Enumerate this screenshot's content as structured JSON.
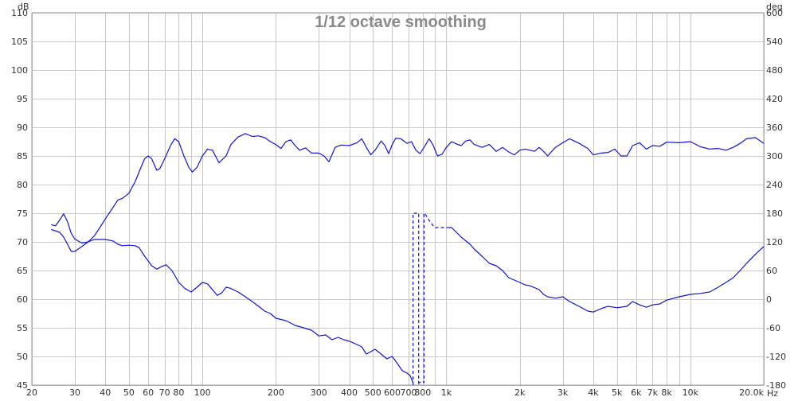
{
  "chart_data": {
    "type": "line",
    "title": "1/12 octave smoothing",
    "xlabel": "Hz",
    "ylabel_left": "dB",
    "ylabel_right": "deg",
    "x_scale": "log",
    "xlim": [
      20,
      20000
    ],
    "ylim": [
      45,
      110
    ],
    "ylim_right": [
      -180,
      600
    ],
    "grid": true,
    "line_color": "#1515c8",
    "x_ticks": [
      {
        "value": 20,
        "label": "20"
      },
      {
        "value": 30,
        "label": "30"
      },
      {
        "value": 40,
        "label": "40"
      },
      {
        "value": 50,
        "label": "50"
      },
      {
        "value": 60,
        "label": "60"
      },
      {
        "value": 70,
        "label": "70"
      },
      {
        "value": 80,
        "label": "80"
      },
      {
        "value": 100,
        "label": "100"
      },
      {
        "value": 200,
        "label": "200"
      },
      {
        "value": 300,
        "label": "300"
      },
      {
        "value": 400,
        "label": "400"
      },
      {
        "value": 500,
        "label": "500"
      },
      {
        "value": 600,
        "label": "600"
      },
      {
        "value": 700,
        "label": "700"
      },
      {
        "value": 800,
        "label": "800"
      },
      {
        "value": 1000,
        "label": "1k"
      },
      {
        "value": 2000,
        "label": "2k"
      },
      {
        "value": 3000,
        "label": "3k"
      },
      {
        "value": 4000,
        "label": "4k"
      },
      {
        "value": 5000,
        "label": "5k"
      },
      {
        "value": 6000,
        "label": "6k"
      },
      {
        "value": 7000,
        "label": "7k"
      },
      {
        "value": 8000,
        "label": "8k"
      },
      {
        "value": 10000,
        "label": "10k"
      },
      {
        "value": 20000,
        "label": "20.0k"
      }
    ],
    "y_ticks_left": [
      {
        "value": 110,
        "label": "110"
      },
      {
        "value": 105,
        "label": "105"
      },
      {
        "value": 100,
        "label": "100"
      },
      {
        "value": 95,
        "label": "95"
      },
      {
        "value": 90,
        "label": "90"
      },
      {
        "value": 85,
        "label": "85"
      },
      {
        "value": 80,
        "label": "80"
      },
      {
        "value": 75,
        "label": "75"
      },
      {
        "value": 70,
        "label": "70"
      },
      {
        "value": 65,
        "label": "65"
      },
      {
        "value": 60,
        "label": "60"
      },
      {
        "value": 55,
        "label": "55"
      },
      {
        "value": 50,
        "label": "50"
      },
      {
        "value": 45,
        "label": "45"
      }
    ],
    "y_ticks_right": [
      {
        "value": 600,
        "label": "600"
      },
      {
        "value": 540,
        "label": "540"
      },
      {
        "value": 480,
        "label": "480"
      },
      {
        "value": 420,
        "label": "420"
      },
      {
        "value": 360,
        "label": "360"
      },
      {
        "value": 300,
        "label": "300"
      },
      {
        "value": 240,
        "label": "240"
      },
      {
        "value": 180,
        "label": "180"
      },
      {
        "value": 120,
        "label": "120"
      },
      {
        "value": 60,
        "label": "60"
      },
      {
        "value": 0,
        "label": "0"
      },
      {
        "value": -60,
        "label": "-60"
      },
      {
        "value": -120,
        "label": "-120"
      },
      {
        "value": -180,
        "label": "-180"
      }
    ],
    "series": [
      {
        "axis": "left",
        "style": "solid",
        "points": [
          [
            24,
            73.0
          ],
          [
            25,
            72.8
          ],
          [
            26,
            73.8
          ],
          [
            27,
            74.9
          ],
          [
            28,
            73.5
          ],
          [
            29,
            71.5
          ],
          [
            30,
            70.5
          ],
          [
            32,
            69.8
          ],
          [
            34,
            70.0
          ],
          [
            36,
            71.0
          ],
          [
            38,
            72.5
          ],
          [
            40,
            74.0
          ],
          [
            43,
            76.0
          ],
          [
            45,
            77.3
          ],
          [
            47,
            77.6
          ],
          [
            50,
            78.5
          ],
          [
            53,
            80.5
          ],
          [
            56,
            83.0
          ],
          [
            58,
            84.5
          ],
          [
            60,
            85.0
          ],
          [
            62,
            84.5
          ],
          [
            65,
            82.5
          ],
          [
            67,
            82.8
          ],
          [
            70,
            84.5
          ],
          [
            74,
            86.8
          ],
          [
            77,
            88.0
          ],
          [
            80,
            87.5
          ],
          [
            84,
            85.0
          ],
          [
            88,
            83.0
          ],
          [
            91,
            82.2
          ],
          [
            95,
            83.0
          ],
          [
            100,
            85.0
          ],
          [
            105,
            86.2
          ],
          [
            110,
            86.0
          ],
          [
            117,
            83.8
          ],
          [
            125,
            85.0
          ],
          [
            131,
            87.0
          ],
          [
            140,
            88.3
          ],
          [
            150,
            88.9
          ],
          [
            160,
            88.4
          ],
          [
            170,
            88.5
          ],
          [
            180,
            88.2
          ],
          [
            190,
            87.5
          ],
          [
            200,
            87.0
          ],
          [
            210,
            86.3
          ],
          [
            220,
            87.5
          ],
          [
            230,
            87.8
          ],
          [
            240,
            86.8
          ],
          [
            250,
            86.0
          ],
          [
            265,
            86.4
          ],
          [
            280,
            85.5
          ],
          [
            300,
            85.5
          ],
          [
            315,
            85.0
          ],
          [
            330,
            84.0
          ],
          [
            350,
            86.5
          ],
          [
            370,
            86.9
          ],
          [
            400,
            86.8
          ],
          [
            430,
            87.3
          ],
          [
            450,
            88.0
          ],
          [
            470,
            86.5
          ],
          [
            490,
            85.2
          ],
          [
            510,
            86.0
          ],
          [
            540,
            87.6
          ],
          [
            560,
            86.8
          ],
          [
            580,
            85.4
          ],
          [
            600,
            87.0
          ],
          [
            620,
            88.1
          ],
          [
            650,
            88.0
          ],
          [
            690,
            87.2
          ],
          [
            720,
            87.5
          ],
          [
            750,
            86.0
          ],
          [
            780,
            85.4
          ],
          [
            810,
            86.5
          ],
          [
            850,
            88.0
          ],
          [
            880,
            87.0
          ],
          [
            920,
            85.0
          ],
          [
            960,
            85.3
          ],
          [
            1000,
            86.5
          ],
          [
            1050,
            87.5
          ],
          [
            1100,
            87.1
          ],
          [
            1150,
            86.8
          ],
          [
            1200,
            87.6
          ],
          [
            1250,
            87.8
          ],
          [
            1300,
            87.0
          ],
          [
            1400,
            86.5
          ],
          [
            1500,
            87.0
          ],
          [
            1600,
            85.8
          ],
          [
            1700,
            86.5
          ],
          [
            1800,
            85.7
          ],
          [
            1900,
            85.2
          ],
          [
            2000,
            86.0
          ],
          [
            2100,
            86.2
          ],
          [
            2300,
            85.8
          ],
          [
            2400,
            86.5
          ],
          [
            2500,
            85.8
          ],
          [
            2600,
            85.0
          ],
          [
            2800,
            86.5
          ],
          [
            3000,
            87.3
          ],
          [
            3200,
            88.0
          ],
          [
            3500,
            87.2
          ],
          [
            3800,
            86.3
          ],
          [
            4000,
            85.2
          ],
          [
            4300,
            85.5
          ],
          [
            4600,
            85.6
          ],
          [
            4900,
            86.2
          ],
          [
            5200,
            85.0
          ],
          [
            5500,
            85.0
          ],
          [
            5800,
            86.8
          ],
          [
            6200,
            87.3
          ],
          [
            6600,
            86.2
          ],
          [
            7000,
            86.8
          ],
          [
            7500,
            86.7
          ],
          [
            8000,
            87.4
          ],
          [
            9000,
            87.3
          ],
          [
            10000,
            87.5
          ],
          [
            11000,
            86.6
          ],
          [
            12000,
            86.2
          ],
          [
            13000,
            86.3
          ],
          [
            14000,
            86.0
          ],
          [
            15000,
            86.5
          ],
          [
            16000,
            87.2
          ],
          [
            17000,
            88.0
          ],
          [
            18500,
            88.2
          ],
          [
            20000,
            87.2
          ]
        ]
      },
      {
        "axis": "right",
        "style": "solid",
        "points": [
          [
            24,
            146
          ],
          [
            26,
            140
          ],
          [
            27,
            130
          ],
          [
            28,
            115
          ],
          [
            29,
            100
          ],
          [
            30,
            100
          ],
          [
            32,
            110
          ],
          [
            34,
            120
          ],
          [
            36,
            125
          ],
          [
            38,
            125
          ],
          [
            40,
            125
          ],
          [
            43,
            122
          ],
          [
            45,
            115
          ],
          [
            47,
            112
          ],
          [
            50,
            113
          ],
          [
            53,
            112
          ],
          [
            55,
            108
          ],
          [
            58,
            90
          ],
          [
            62,
            70
          ],
          [
            65,
            63
          ],
          [
            68,
            68
          ],
          [
            71,
            72
          ],
          [
            75,
            60
          ],
          [
            78,
            45
          ],
          [
            80,
            35
          ],
          [
            85,
            22
          ],
          [
            90,
            15
          ],
          [
            95,
            25
          ],
          [
            100,
            35
          ],
          [
            105,
            32
          ],
          [
            110,
            20
          ],
          [
            115,
            8
          ],
          [
            120,
            13
          ],
          [
            125,
            25
          ],
          [
            130,
            23
          ],
          [
            140,
            15
          ],
          [
            150,
            5
          ],
          [
            160,
            -5
          ],
          [
            170,
            -15
          ],
          [
            180,
            -25
          ],
          [
            190,
            -30
          ],
          [
            200,
            -40
          ],
          [
            220,
            -45
          ],
          [
            240,
            -55
          ],
          [
            260,
            -60
          ],
          [
            280,
            -65
          ],
          [
            300,
            -77
          ],
          [
            320,
            -75
          ],
          [
            340,
            -85
          ],
          [
            360,
            -80
          ],
          [
            380,
            -85
          ],
          [
            400,
            -88
          ],
          [
            430,
            -95
          ],
          [
            450,
            -100
          ],
          [
            470,
            -115
          ],
          [
            490,
            -110
          ],
          [
            510,
            -105
          ],
          [
            540,
            -115
          ],
          [
            570,
            -125
          ],
          [
            600,
            -120
          ],
          [
            630,
            -135
          ],
          [
            660,
            -150
          ],
          [
            690,
            -155
          ],
          [
            710,
            -160
          ],
          [
            730,
            -175
          ]
        ]
      },
      {
        "axis": "right",
        "style": "dashed",
        "points": [
          [
            730,
            -180
          ],
          [
            730,
            180
          ],
          [
            770,
            180
          ],
          [
            770,
            -180
          ],
          [
            770,
            -175
          ],
          [
            800,
            -172
          ],
          [
            810,
            -175
          ],
          [
            810,
            180
          ],
          [
            820,
            178
          ],
          [
            850,
            165
          ],
          [
            880,
            155
          ],
          [
            900,
            150
          ],
          [
            950,
            150
          ],
          [
            1000,
            150
          ]
        ]
      },
      {
        "axis": "right",
        "style": "solid",
        "points": [
          [
            1000,
            150
          ],
          [
            1050,
            150
          ],
          [
            1100,
            140
          ],
          [
            1150,
            130
          ],
          [
            1250,
            115
          ],
          [
            1300,
            105
          ],
          [
            1400,
            90
          ],
          [
            1500,
            75
          ],
          [
            1600,
            70
          ],
          [
            1700,
            60
          ],
          [
            1800,
            45
          ],
          [
            1900,
            40
          ],
          [
            2000,
            35
          ],
          [
            2100,
            30
          ],
          [
            2200,
            28
          ],
          [
            2400,
            20
          ],
          [
            2500,
            10
          ],
          [
            2600,
            5
          ],
          [
            2800,
            2
          ],
          [
            3000,
            5
          ],
          [
            3200,
            -5
          ],
          [
            3500,
            -15
          ],
          [
            3800,
            -25
          ],
          [
            4000,
            -27
          ],
          [
            4300,
            -20
          ],
          [
            4600,
            -15
          ],
          [
            5000,
            -18
          ],
          [
            5500,
            -15
          ],
          [
            5800,
            -5
          ],
          [
            6200,
            -12
          ],
          [
            6600,
            -17
          ],
          [
            7000,
            -12
          ],
          [
            7500,
            -10
          ],
          [
            8000,
            -2
          ],
          [
            9000,
            5
          ],
          [
            10000,
            10
          ],
          [
            11000,
            12
          ],
          [
            12000,
            15
          ],
          [
            13000,
            25
          ],
          [
            14000,
            35
          ],
          [
            15000,
            45
          ],
          [
            16000,
            60
          ],
          [
            17000,
            75
          ],
          [
            18000,
            88
          ],
          [
            19000,
            100
          ],
          [
            20000,
            110
          ],
          [
            21000,
            118
          ],
          [
            22000,
            122
          ],
          [
            23000,
            122
          ],
          [
            24500,
            125
          ],
          [
            25500,
            125
          ]
        ]
      }
    ]
  }
}
